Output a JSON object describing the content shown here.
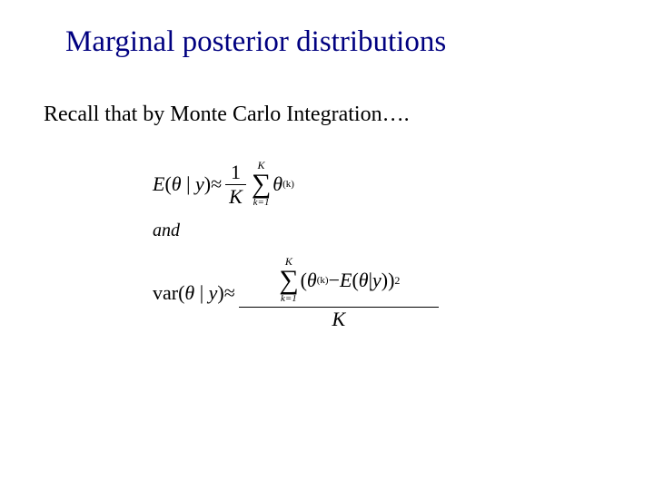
{
  "title": "Marginal posterior distributions",
  "body": "Recall that by Monte Carlo Integration….",
  "formula": {
    "eq1": {
      "lhs_E": "E",
      "lhs_open": "(",
      "lhs_theta": "θ",
      "lhs_bar": " | ",
      "lhs_y": "y",
      "lhs_close": ")",
      "approx": " ≈ ",
      "frac_num": "1",
      "frac_den": "K",
      "sum_top": "K",
      "sum_sym": "∑",
      "sum_bot": "k=1",
      "term_theta": "θ",
      "term_sup": "(k)"
    },
    "and": "and",
    "eq2": {
      "lhs_var": "var(",
      "lhs_theta": "θ",
      "lhs_bar": " | ",
      "lhs_y": "y",
      "lhs_close": ")",
      "approx": " ≈ ",
      "sum_top": "K",
      "sum_sym": "∑",
      "sum_bot": "k=1",
      "open": "(",
      "theta1": "θ",
      "sup1": "(k)",
      "minus": " − ",
      "E": "E",
      "Eopen": "(",
      "theta2": "θ",
      "bar2": " | ",
      "y2": "y",
      "close2": "))",
      "sq": "2",
      "den": "K"
    }
  },
  "colors": {
    "title": "#000080",
    "text": "#000000",
    "background": "#ffffff"
  },
  "typography": {
    "title_font": "Comic Sans MS",
    "title_size_pt": 33,
    "body_font": "Times New Roman",
    "body_size_pt": 24,
    "formula_size_pt": 22
  }
}
